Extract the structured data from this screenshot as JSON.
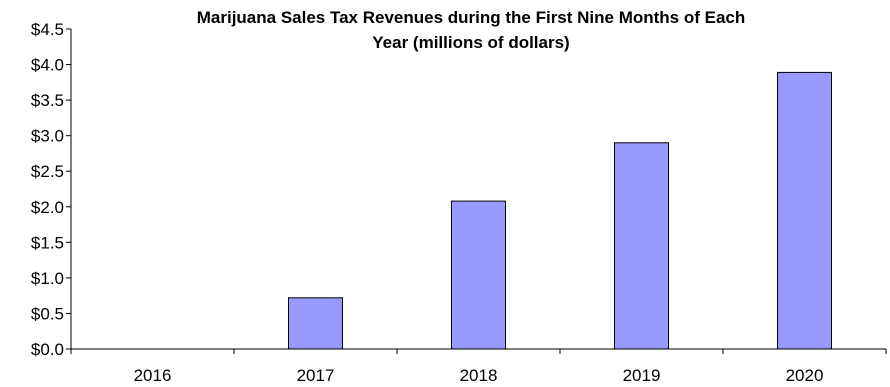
{
  "chart_data": {
    "type": "bar",
    "title_lines": [
      "Marijuana Sales Tax Revenues during the First Nine Months of Each",
      "Year (millions of dollars)"
    ],
    "categories": [
      "2016",
      "2017",
      "2018",
      "2019",
      "2020"
    ],
    "values": [
      0,
      0.72,
      2.08,
      2.9,
      3.89
    ],
    "ylim": [
      0,
      4.5
    ],
    "y_ticks": [
      0,
      0.5,
      1.0,
      1.5,
      2.0,
      2.5,
      3.0,
      3.5,
      4.0,
      4.5
    ],
    "y_tick_labels": [
      "$0.0",
      "$0.5",
      "$1.0",
      "$1.5",
      "$2.0",
      "$2.5",
      "$3.0",
      "$3.5",
      "$4.0",
      "$4.5"
    ],
    "xlabel": "",
    "ylabel": "",
    "grid": false,
    "legend": "none",
    "bar_color": "#9999ff",
    "bar_edge_color": "#000000"
  }
}
